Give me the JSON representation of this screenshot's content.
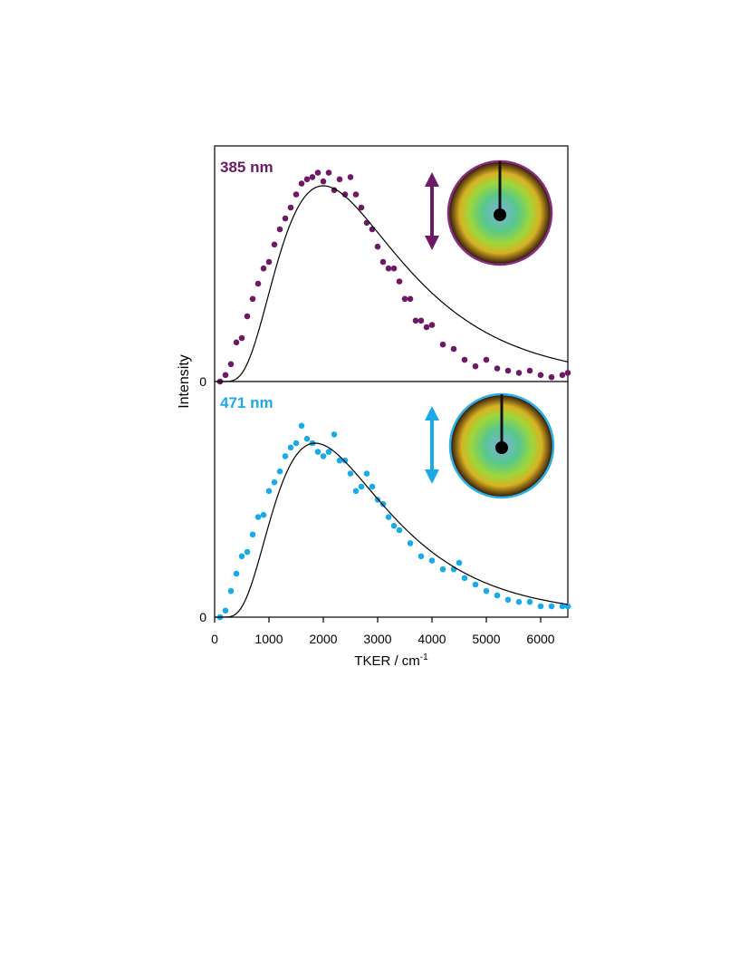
{
  "figure": {
    "y_axis_label": "Intensity",
    "x_axis_label_main": "TKER / cm",
    "x_axis_label_sup": "-1",
    "x_ticks": [
      "0",
      "1000",
      "2000",
      "3000",
      "4000",
      "5000",
      "6000"
    ],
    "y_zero_label": "0"
  },
  "chart_data": [
    {
      "type": "scatter",
      "panel": "top",
      "label": "385 nm",
      "color": "#6b1a63",
      "xlim": [
        0,
        6500
      ],
      "ylim": [
        0,
        1.05
      ],
      "x_ticks": [
        0,
        1000,
        2000,
        3000,
        4000,
        5000,
        6000
      ],
      "xlabel": "TKER / cm-1",
      "ylabel": "Intensity",
      "fit_curve": {
        "color": "#000000",
        "peak_x": 2000,
        "peak_y": 0.9
      },
      "series": [
        {
          "values": [
            [
              100,
              0.0
            ],
            [
              200,
              0.03
            ],
            [
              300,
              0.08
            ],
            [
              400,
              0.18
            ],
            [
              500,
              0.2
            ],
            [
              600,
              0.3
            ],
            [
              700,
              0.38
            ],
            [
              800,
              0.45
            ],
            [
              900,
              0.52
            ],
            [
              1000,
              0.55
            ],
            [
              1100,
              0.63
            ],
            [
              1200,
              0.7
            ],
            [
              1300,
              0.75
            ],
            [
              1400,
              0.8
            ],
            [
              1500,
              0.86
            ],
            [
              1600,
              0.91
            ],
            [
              1700,
              0.93
            ],
            [
              1800,
              0.94
            ],
            [
              1900,
              0.96
            ],
            [
              2000,
              0.92
            ],
            [
              2100,
              0.96
            ],
            [
              2200,
              0.88
            ],
            [
              2300,
              0.93
            ],
            [
              2400,
              0.86
            ],
            [
              2500,
              0.94
            ],
            [
              2600,
              0.86
            ],
            [
              2700,
              0.8
            ],
            [
              2800,
              0.73
            ],
            [
              2900,
              0.7
            ],
            [
              3000,
              0.62
            ],
            [
              3100,
              0.55
            ],
            [
              3200,
              0.52
            ],
            [
              3300,
              0.52
            ],
            [
              3400,
              0.46
            ],
            [
              3500,
              0.38
            ],
            [
              3600,
              0.38
            ],
            [
              3700,
              0.28
            ],
            [
              3800,
              0.28
            ],
            [
              3900,
              0.25
            ],
            [
              4000,
              0.26
            ],
            [
              4200,
              0.17
            ],
            [
              4400,
              0.15
            ],
            [
              4600,
              0.1
            ],
            [
              4800,
              0.07
            ],
            [
              5000,
              0.1
            ],
            [
              5200,
              0.06
            ],
            [
              5400,
              0.05
            ],
            [
              5600,
              0.04
            ],
            [
              5800,
              0.05
            ],
            [
              6000,
              0.03
            ],
            [
              6200,
              0.02
            ],
            [
              6400,
              0.03
            ],
            [
              6500,
              0.04
            ]
          ]
        }
      ]
    },
    {
      "type": "scatter",
      "panel": "bottom",
      "label": "471 nm",
      "color": "#1aaae8",
      "xlim": [
        0,
        6500
      ],
      "ylim": [
        0,
        1.05
      ],
      "x_ticks": [
        0,
        1000,
        2000,
        3000,
        4000,
        5000,
        6000
      ],
      "xlabel": "TKER / cm-1",
      "ylabel": "Intensity",
      "fit_curve": {
        "color": "#000000",
        "peak_x": 1850,
        "peak_y": 0.8
      },
      "series": [
        {
          "values": [
            [
              100,
              0.0
            ],
            [
              200,
              0.03
            ],
            [
              300,
              0.12
            ],
            [
              400,
              0.2
            ],
            [
              500,
              0.28
            ],
            [
              600,
              0.3
            ],
            [
              700,
              0.38
            ],
            [
              800,
              0.46
            ],
            [
              900,
              0.47
            ],
            [
              1000,
              0.58
            ],
            [
              1100,
              0.62
            ],
            [
              1200,
              0.67
            ],
            [
              1300,
              0.74
            ],
            [
              1400,
              0.78
            ],
            [
              1500,
              0.8
            ],
            [
              1600,
              0.88
            ],
            [
              1700,
              0.82
            ],
            [
              1800,
              0.8
            ],
            [
              1900,
              0.76
            ],
            [
              2000,
              0.74
            ],
            [
              2100,
              0.76
            ],
            [
              2200,
              0.84
            ],
            [
              2300,
              0.72
            ],
            [
              2400,
              0.72
            ],
            [
              2500,
              0.66
            ],
            [
              2600,
              0.58
            ],
            [
              2700,
              0.6
            ],
            [
              2800,
              0.66
            ],
            [
              2900,
              0.6
            ],
            [
              3000,
              0.54
            ],
            [
              3100,
              0.52
            ],
            [
              3200,
              0.46
            ],
            [
              3300,
              0.42
            ],
            [
              3400,
              0.4
            ],
            [
              3600,
              0.34
            ],
            [
              3800,
              0.28
            ],
            [
              4000,
              0.26
            ],
            [
              4200,
              0.22
            ],
            [
              4400,
              0.22
            ],
            [
              4500,
              0.25
            ],
            [
              4600,
              0.18
            ],
            [
              4800,
              0.15
            ],
            [
              5000,
              0.12
            ],
            [
              5200,
              0.1
            ],
            [
              5400,
              0.08
            ],
            [
              5600,
              0.07
            ],
            [
              5800,
              0.07
            ],
            [
              6000,
              0.05
            ],
            [
              6200,
              0.05
            ],
            [
              6400,
              0.05
            ],
            [
              6500,
              0.05
            ]
          ]
        }
      ]
    }
  ]
}
